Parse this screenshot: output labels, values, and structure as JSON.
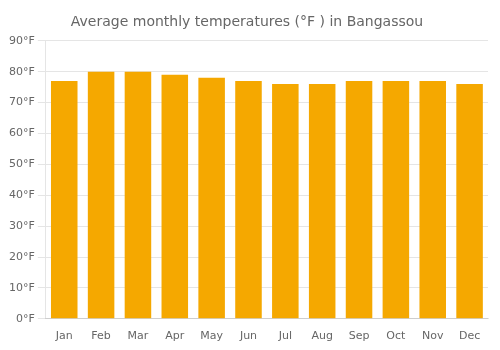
{
  "chart_data": {
    "type": "bar",
    "title": "Average monthly temperatures (°F ) in Bangassou",
    "categories": [
      "Jan",
      "Feb",
      "Mar",
      "Apr",
      "May",
      "Jun",
      "Jul",
      "Aug",
      "Sep",
      "Oct",
      "Nov",
      "Dec"
    ],
    "values": [
      77,
      80,
      80,
      79,
      78,
      77,
      76,
      76,
      77,
      77,
      77,
      76
    ],
    "color": "#F5A800",
    "ylim": [
      0,
      90
    ],
    "yticks": [
      {
        "value": 0,
        "label": "0°F"
      },
      {
        "value": 10,
        "label": "10°F"
      },
      {
        "value": 20,
        "label": "20°F"
      },
      {
        "value": 30,
        "label": "30°F"
      },
      {
        "value": 40,
        "label": "40°F"
      },
      {
        "value": 50,
        "label": "50°F"
      },
      {
        "value": 60,
        "label": "60°F"
      },
      {
        "value": 70,
        "label": "70°F"
      },
      {
        "value": 80,
        "label": "80°F"
      },
      {
        "value": 90,
        "label": "90°F"
      }
    ],
    "grid": true
  }
}
